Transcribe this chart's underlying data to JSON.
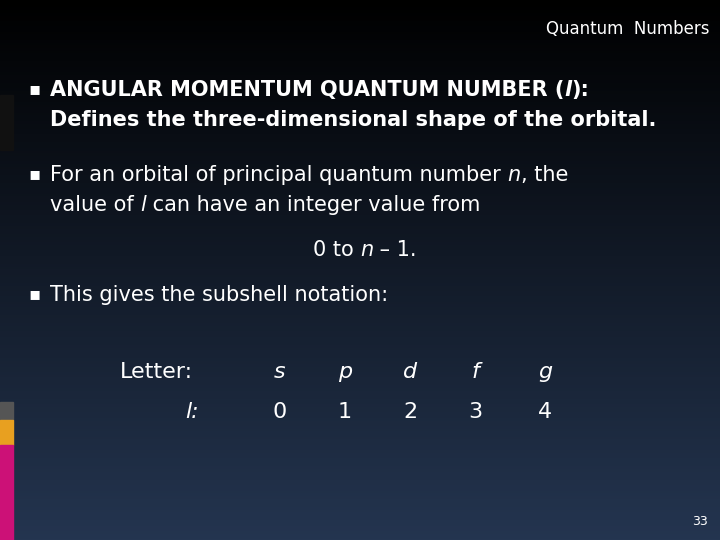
{
  "title": "Quantum  Numbers",
  "title_color": "#ffffff",
  "title_fontsize": 12,
  "slide_number": "33",
  "bullet_marker": "▪",
  "left_bar_dark": "#444444",
  "left_bar_gold": "#e8a020",
  "left_bar_pink": "#cc1177",
  "bg_top": "#000000",
  "bg_bottom": "#243550",
  "bullet1_bold": "ANGULAR MOMENTUM QUANTUM NUMBER (",
  "bullet1_l": "l",
  "bullet1_end": "):",
  "bullet1_line2": "Defines the three-dimensional shape of the orbital.",
  "bullet2_pre": "For an orbital of principal quantum number ",
  "bullet2_n": "n",
  "bullet2_post": ", the",
  "bullet2_line2_pre": "value of ",
  "bullet2_line2_l": "l",
  "bullet2_line2_post": " can have an integer value from",
  "bullet3_pre": "0 to ",
  "bullet3_n": "n",
  "bullet3_post": " – 1.",
  "bullet4": "This gives the subshell notation:",
  "table_letter_label": "Letter:",
  "table_l_label": "l:",
  "table_letters": [
    "s",
    "p",
    "d",
    "f",
    "g"
  ],
  "table_numbers": [
    "0",
    "1",
    "2",
    "3",
    "4"
  ],
  "font_size_bullet1": 15,
  "font_size_body": 15,
  "font_size_table": 16
}
